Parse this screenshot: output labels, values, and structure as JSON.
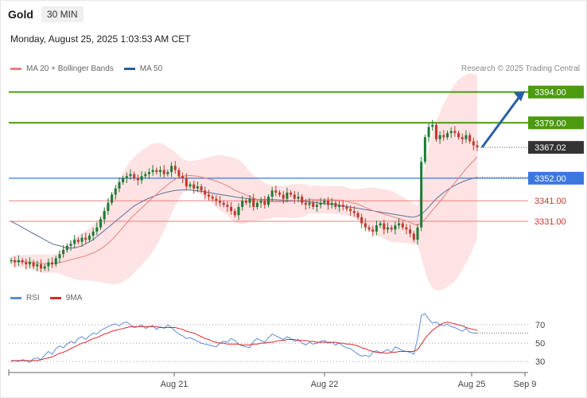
{
  "header": {
    "symbol": "Gold",
    "timeframe": "30 MIN",
    "timestamp": "Monday, August 25, 2025 1:03:53 AM CET"
  },
  "legend": {
    "ma_bb": "MA 20 + Bollinger Bands",
    "ma50": "MA 50",
    "credit": "Research © 2025 Trading Central"
  },
  "rsi_legend": {
    "rsi": "RSI",
    "ma9": "9MA"
  },
  "colors": {
    "up_candle": "#1e7a36",
    "down_candle": "#c0392b",
    "resistance": "#4c9a0f",
    "pivot": "#3a78e0",
    "support": "#e88080",
    "ma20": "#e88080",
    "ma50": "#5a6f9e",
    "bb_fill": "#fcd9d9",
    "rsi": "#5b8bd8",
    "rsi_ma": "#d62a2a",
    "arrow": "#2a5fa8",
    "last_price_box": "#333333"
  },
  "chart_data": {
    "type": "candlestick",
    "x_ticks": [
      "Aug 21",
      "Aug 22",
      "Aug 25",
      "Sep 9"
    ],
    "y_range": [
      3305,
      3402
    ],
    "levels": [
      {
        "value": 3394.0,
        "label": "3394.00",
        "kind": "resistance"
      },
      {
        "value": 3379.0,
        "label": "3379.00",
        "kind": "resistance"
      },
      {
        "value": 3367.02,
        "label": "3367.02",
        "kind": "last"
      },
      {
        "value": 3352.0,
        "label": "3352.00",
        "kind": "pivot"
      },
      {
        "value": 3341.0,
        "label": "3341.00",
        "kind": "support"
      },
      {
        "value": 3331.0,
        "label": "3331.00",
        "kind": "support"
      }
    ],
    "close_series": [
      3312,
      3311,
      3312,
      3311,
      3310,
      3311,
      3309,
      3310,
      3308,
      3309,
      3311,
      3310,
      3313,
      3315,
      3317,
      3319,
      3320,
      3322,
      3321,
      3323,
      3322,
      3324,
      3326,
      3328,
      3332,
      3336,
      3340,
      3344,
      3347,
      3350,
      3352,
      3353,
      3354,
      3352,
      3351,
      3353,
      3354,
      3355,
      3356,
      3355,
      3356,
      3354,
      3355,
      3358,
      3356,
      3353,
      3352,
      3348,
      3349,
      3347,
      3348,
      3346,
      3344,
      3343,
      3342,
      3341,
      3340,
      3339,
      3338,
      3336,
      3334,
      3338,
      3341,
      3340,
      3342,
      3338,
      3340,
      3341,
      3339,
      3343,
      3346,
      3345,
      3344,
      3342,
      3345,
      3344,
      3342,
      3343,
      3340,
      3339,
      3340,
      3338,
      3339,
      3340,
      3341,
      3339,
      3340,
      3338,
      3339,
      3338,
      3337,
      3336,
      3335,
      3333,
      3330,
      3328,
      3327,
      3326,
      3329,
      3330,
      3327,
      3328,
      3327,
      3329,
      3330,
      3328,
      3327,
      3325,
      3322,
      3328,
      3360,
      3372,
      3377,
      3378,
      3371,
      3373,
      3372,
      3374,
      3375,
      3374,
      3372,
      3371,
      3373,
      3370,
      3368,
      3367.02
    ],
    "ma50_series": [
      3331,
      3330,
      3329,
      3328,
      3327,
      3326,
      3325,
      3324,
      3323,
      3322,
      3321,
      3320,
      3319.5,
      3319,
      3318.5,
      3318,
      3318,
      3318,
      3318.5,
      3319,
      3320,
      3321,
      3322,
      3323.5,
      3325,
      3326.5,
      3328,
      3329.5,
      3331,
      3332.5,
      3334,
      3335.5,
      3337,
      3338.5,
      3339.5,
      3340.5,
      3341.5,
      3342.3,
      3343,
      3343.7,
      3344.3,
      3344.8,
      3345.3,
      3345.7,
      3346,
      3346.2,
      3346.3,
      3346.3,
      3346.2,
      3346,
      3345.8,
      3345.6,
      3345.3,
      3345,
      3344.7,
      3344.4,
      3344.1,
      3343.8,
      3343.5,
      3343.2,
      3342.9,
      3342.6,
      3342.4,
      3342.2,
      3342,
      3341.8,
      3341.7,
      3341.6,
      3341.6,
      3341.6,
      3341.6,
      3341.5,
      3341.4,
      3341.3,
      3341.2,
      3341.1,
      3341,
      3340.9,
      3340.8,
      3340.6,
      3340.4,
      3340.2,
      3340,
      3339.8,
      3339.6,
      3339.4,
      3339.2,
      3339,
      3338.8,
      3338.5,
      3338.2,
      3337.9,
      3337.6,
      3337.3,
      3337,
      3336.7,
      3336.4,
      3336.1,
      3335.8,
      3335.5,
      3335.2,
      3334.9,
      3334.6,
      3334.3,
      3334,
      3333.7,
      3333.4,
      3333.1,
      3333,
      3333.5,
      3334.5,
      3336,
      3338,
      3340,
      3342,
      3343.5,
      3345,
      3346.3,
      3347.5,
      3348.5,
      3349.4,
      3350.2,
      3350.9,
      3351.5,
      3352,
      3352.4
    ]
  },
  "rsi": {
    "levels": [
      70,
      50,
      30
    ],
    "y_range": [
      18,
      90
    ],
    "rsi_series": [
      30,
      31,
      30,
      32,
      31,
      29,
      33,
      34,
      32,
      37,
      41,
      38,
      44,
      47,
      45,
      49,
      52,
      50,
      55,
      57,
      54,
      58,
      61,
      60,
      64,
      66,
      68,
      70,
      71,
      69,
      72,
      73,
      70,
      67,
      68,
      70,
      66,
      68,
      69,
      65,
      68,
      66,
      70,
      67,
      63,
      60,
      58,
      55,
      56,
      54,
      52,
      50,
      49,
      48,
      47,
      46,
      50,
      52,
      51,
      55,
      53,
      49,
      47,
      46,
      45,
      52,
      55,
      53,
      51,
      56,
      60,
      58,
      56,
      54,
      57,
      55,
      52,
      54,
      50,
      48,
      51,
      49,
      50,
      52,
      53,
      50,
      51,
      48,
      50,
      47,
      45,
      44,
      41,
      38,
      36,
      37,
      35,
      40,
      42,
      39,
      41,
      43,
      40,
      46,
      44,
      42,
      41,
      40,
      38,
      55,
      80,
      82,
      76,
      72,
      73,
      70,
      69,
      71,
      68,
      67,
      65,
      63,
      66,
      62,
      61,
      61
    ],
    "ma9_series": [
      31,
      31,
      31,
      31,
      31,
      31,
      31,
      31,
      32,
      33,
      34,
      35,
      37,
      39,
      40,
      42,
      44,
      46,
      48,
      50,
      51,
      53,
      55,
      56,
      58,
      60,
      61,
      63,
      64,
      65,
      66,
      67,
      68,
      68,
      68,
      68,
      68,
      68,
      68,
      68,
      67,
      67,
      67,
      67,
      67,
      66,
      65,
      63,
      62,
      61,
      59,
      57,
      55,
      54,
      52,
      51,
      50,
      50,
      49,
      49,
      49,
      49,
      48,
      48,
      48,
      49,
      49,
      50,
      50,
      51,
      51,
      52,
      53,
      53,
      54,
      54,
      54,
      53,
      53,
      53,
      52,
      52,
      51,
      51,
      51,
      51,
      51,
      51,
      50,
      50,
      49,
      49,
      48,
      47,
      45,
      44,
      42,
      41,
      40,
      40,
      39,
      39,
      40,
      40,
      41,
      41,
      41,
      41,
      41,
      43,
      49,
      55,
      60,
      64,
      67,
      70,
      72,
      73,
      72,
      71,
      70,
      69,
      67,
      66,
      65,
      64
    ]
  }
}
